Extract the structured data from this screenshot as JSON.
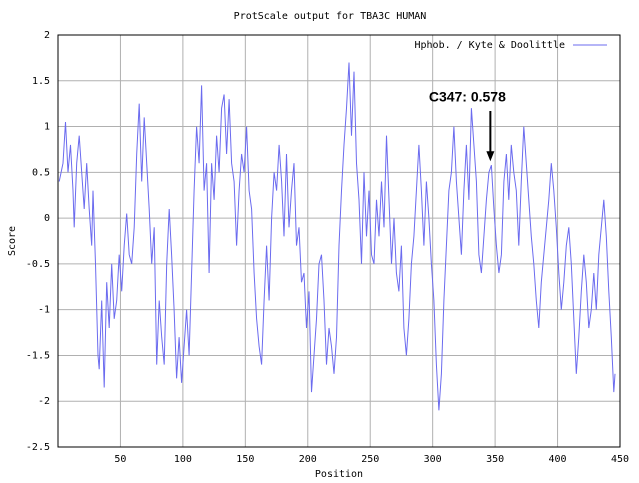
{
  "chart_data": {
    "type": "line",
    "title": "ProtScale output for TBA3C HUMAN",
    "xlabel": "Position",
    "ylabel": "Score",
    "xlim": [
      0,
      450
    ],
    "xticks": [
      50,
      100,
      150,
      200,
      250,
      300,
      350,
      400,
      450
    ],
    "ylim": [
      -2.5,
      2
    ],
    "yticks": [
      -2.5,
      -2,
      -1.5,
      -1,
      -0.5,
      0,
      0.5,
      1,
      1.5,
      2
    ],
    "grid": true,
    "legend": "top-right",
    "x": [
      1,
      4,
      6,
      8,
      10,
      12,
      13,
      15,
      17,
      19,
      21,
      23,
      25,
      27,
      28,
      30,
      32,
      33,
      35,
      37,
      39,
      41,
      43,
      45,
      47,
      49,
      51,
      53,
      55,
      57,
      59,
      61,
      63,
      65,
      67,
      69,
      71,
      73,
      75,
      77,
      79,
      81,
      83,
      85,
      87,
      89,
      91,
      93,
      95,
      97,
      99,
      101,
      103,
      105,
      107,
      109,
      111,
      113,
      115,
      117,
      119,
      121,
      123,
      125,
      127,
      129,
      131,
      133,
      135,
      137,
      139,
      141,
      143,
      145,
      147,
      149,
      151,
      153,
      155,
      157,
      159,
      161,
      163,
      165,
      167,
      169,
      171,
      173,
      175,
      177,
      179,
      181,
      183,
      185,
      187,
      189,
      191,
      193,
      195,
      197,
      199,
      201,
      203,
      205,
      207,
      209,
      211,
      213,
      215,
      217,
      219,
      221,
      223,
      225,
      227,
      229,
      231,
      233,
      235,
      237,
      239,
      241,
      243,
      245,
      247,
      249,
      251,
      253,
      255,
      257,
      259,
      261,
      263,
      265,
      267,
      269,
      271,
      273,
      275,
      277,
      279,
      281,
      283,
      285,
      287,
      289,
      291,
      293,
      295,
      297,
      299,
      301,
      303,
      305,
      307,
      309,
      311,
      313,
      315,
      317,
      319,
      321,
      323,
      325,
      327,
      329,
      331,
      333,
      335,
      337,
      339,
      341,
      343,
      345,
      347,
      349,
      351,
      353,
      355,
      357,
      359,
      361,
      363,
      365,
      367,
      369,
      371,
      373,
      375,
      377,
      379,
      381,
      383,
      385,
      387,
      389,
      391,
      393,
      395,
      397,
      399,
      401,
      403,
      405,
      407,
      409,
      411,
      413,
      415,
      417,
      419,
      421,
      423,
      425,
      427,
      429,
      431,
      433,
      435,
      437,
      439,
      441,
      443,
      445,
      446
    ],
    "series": [
      {
        "name": "Hphob. / Kyte & Doolittle",
        "color": "#6b6bef",
        "values": [
          0.4,
          0.6,
          1.05,
          0.5,
          0.8,
          0.3,
          -0.1,
          0.6,
          0.9,
          0.5,
          0.1,
          0.6,
          0.1,
          -0.3,
          0.3,
          -0.5,
          -1.5,
          -1.65,
          -0.9,
          -1.85,
          -0.7,
          -1.2,
          -0.5,
          -1.1,
          -0.9,
          -0.4,
          -0.8,
          -0.3,
          0.05,
          -0.4,
          -0.5,
          -0.1,
          0.7,
          1.25,
          0.4,
          1.1,
          0.6,
          0.1,
          -0.5,
          -0.1,
          -1.6,
          -0.9,
          -1.3,
          -1.6,
          -0.5,
          0.1,
          -0.4,
          -1.0,
          -1.75,
          -1.3,
          -1.8,
          -1.4,
          -1.0,
          -1.5,
          -0.6,
          0.3,
          1.0,
          0.6,
          1.45,
          0.3,
          0.6,
          -0.6,
          0.6,
          0.2,
          0.9,
          0.5,
          1.2,
          1.35,
          0.7,
          1.3,
          0.6,
          0.4,
          -0.3,
          0.3,
          0.7,
          0.5,
          1.0,
          0.3,
          0.1,
          -0.6,
          -1.1,
          -1.4,
          -1.6,
          -0.9,
          -0.3,
          -0.9,
          0.0,
          0.5,
          0.3,
          0.8,
          0.4,
          -0.2,
          0.7,
          -0.1,
          0.3,
          0.6,
          -0.3,
          -0.1,
          -0.7,
          -0.6,
          -1.2,
          -0.8,
          -1.9,
          -1.5,
          -1.1,
          -0.5,
          -0.4,
          -0.9,
          -1.6,
          -1.2,
          -1.4,
          -1.7,
          -1.3,
          -0.3,
          0.3,
          0.8,
          1.2,
          1.7,
          0.9,
          1.6,
          0.6,
          0.2,
          -0.5,
          0.5,
          -0.2,
          0.3,
          -0.4,
          -0.5,
          0.2,
          -0.2,
          0.4,
          -0.1,
          0.9,
          0.2,
          -0.5,
          0.0,
          -0.6,
          -0.8,
          -0.3,
          -1.2,
          -1.5,
          -1.1,
          -0.5,
          -0.2,
          0.3,
          0.8,
          0.3,
          -0.3,
          0.4,
          0.0,
          -0.5,
          -0.9,
          -1.6,
          -2.1,
          -1.7,
          -0.9,
          -0.3,
          0.3,
          0.5,
          1.0,
          0.4,
          0.0,
          -0.4,
          0.3,
          0.8,
          0.2,
          1.2,
          0.8,
          0.4,
          -0.4,
          -0.6,
          -0.2,
          0.2,
          0.5,
          0.578,
          0.1,
          -0.3,
          -0.6,
          -0.4,
          0.4,
          0.7,
          0.2,
          0.8,
          0.5,
          0.3,
          -0.3,
          0.4,
          1.0,
          0.6,
          0.2,
          -0.2,
          -0.5,
          -0.9,
          -1.2,
          -0.7,
          -0.4,
          -0.1,
          0.2,
          0.6,
          0.3,
          -0.1,
          -0.6,
          -1.0,
          -0.7,
          -0.3,
          -0.1,
          -0.5,
          -1.1,
          -1.7,
          -1.3,
          -0.8,
          -0.4,
          -0.7,
          -1.2,
          -1.0,
          -0.6,
          -1.0,
          -0.4,
          -0.1,
          0.2,
          -0.2,
          -0.8,
          -1.3,
          -1.9,
          -1.7
        ]
      }
    ],
    "annotation": {
      "text": "C347: 0.578",
      "x": 347,
      "y": 0.578
    }
  }
}
